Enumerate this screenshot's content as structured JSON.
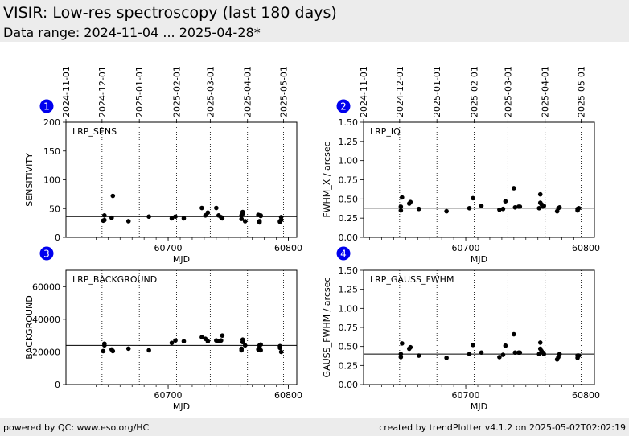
{
  "header": {
    "title": "VISIR: Low-res spectroscopy (last 180 days)",
    "subtitle": "Data range: 2024-11-04 ... 2025-04-28*"
  },
  "footer": {
    "left": "powered by QC: www.eso.org/HC",
    "right": "created by trendPlotter v4.1.2 on 2025-05-02T02:02:19"
  },
  "colors": {
    "badge": "#0000ee",
    "points": "#000000",
    "header_bg": "#ececec"
  },
  "chart_data": [
    {
      "type": "scatter",
      "badge": "1",
      "label": "LRP_SENS",
      "xlabel": "MJD",
      "ylabel": "SENSITIVITY",
      "xlim": [
        60615,
        60807
      ],
      "ylim": [
        0,
        200
      ],
      "yticks": [
        0,
        50,
        100,
        150,
        200
      ],
      "ytick_labels": [
        "0",
        "50",
        "100",
        "150",
        "200"
      ],
      "xticks": [
        60700,
        60800
      ],
      "xtick_labels": [
        "60700",
        "60800"
      ],
      "reference": 36,
      "date_ticks": [
        {
          "mjd": 60615,
          "label": "2024-11-01"
        },
        {
          "mjd": 60645,
          "label": "2024-12-01"
        },
        {
          "mjd": 60676,
          "label": "2025-01-01"
        },
        {
          "mjd": 60707,
          "label": "2025-02-01"
        },
        {
          "mjd": 60735,
          "label": "2025-03-01"
        },
        {
          "mjd": 60766,
          "label": "2025-04-01"
        },
        {
          "mjd": 60796,
          "label": "2025-05-01"
        }
      ],
      "x": [
        60646,
        60647,
        60647,
        60653,
        60654,
        60667,
        60684,
        60703,
        60706,
        60713,
        60728,
        60731,
        60733,
        60740,
        60742,
        60744,
        60745,
        60761,
        60761,
        60762,
        60762,
        60764,
        60775,
        60776,
        60776,
        60777,
        60777,
        60793,
        60793,
        60794,
        60794
      ],
      "y": [
        29,
        30,
        38,
        34,
        72,
        28,
        36,
        33,
        36,
        33,
        51,
        38,
        43,
        51,
        38,
        35,
        33,
        32,
        38,
        41,
        44,
        28,
        39,
        28,
        26,
        38,
        37,
        27,
        28,
        30,
        35
      ]
    },
    {
      "type": "scatter",
      "badge": "2",
      "label": "LRP_IQ",
      "xlabel": "MJD",
      "ylabel": "FWHM_X / arcsec",
      "xlim": [
        60615,
        60807
      ],
      "ylim": [
        0,
        1.5
      ],
      "yticks": [
        0,
        0.25,
        0.5,
        0.75,
        1.0,
        1.25,
        1.5
      ],
      "ytick_labels": [
        "0.00",
        "0.25",
        "0.50",
        "0.75",
        "1.00",
        "1.25",
        "1.50"
      ],
      "xticks": [
        60700,
        60800
      ],
      "xtick_labels": [
        "60700",
        "60800"
      ],
      "reference": 0.38,
      "date_ticks": [
        {
          "mjd": 60615,
          "label": "2024-11-01"
        },
        {
          "mjd": 60645,
          "label": "2024-12-01"
        },
        {
          "mjd": 60676,
          "label": "2025-01-01"
        },
        {
          "mjd": 60707,
          "label": "2025-02-01"
        },
        {
          "mjd": 60735,
          "label": "2025-03-01"
        },
        {
          "mjd": 60766,
          "label": "2025-04-01"
        },
        {
          "mjd": 60796,
          "label": "2025-05-01"
        }
      ],
      "x": [
        60646,
        60646,
        60647,
        60653,
        60654,
        60661,
        60684,
        60703,
        60706,
        60713,
        60728,
        60731,
        60733,
        60740,
        60741,
        60744,
        60745,
        60761,
        60762,
        60762,
        60763,
        60764,
        60765,
        60776,
        60777,
        60778,
        60793,
        60793,
        60794
      ],
      "y": [
        0.35,
        0.4,
        0.52,
        0.44,
        0.46,
        0.37,
        0.34,
        0.38,
        0.51,
        0.41,
        0.36,
        0.37,
        0.47,
        0.64,
        0.39,
        0.4,
        0.4,
        0.38,
        0.45,
        0.56,
        0.43,
        0.4,
        0.41,
        0.34,
        0.38,
        0.39,
        0.35,
        0.37,
        0.38
      ]
    },
    {
      "type": "scatter",
      "badge": "3",
      "label": "LRP_BACKGROUND",
      "xlabel": "MJD",
      "ylabel": "BACKGROUND",
      "xlim": [
        60615,
        60807
      ],
      "ylim": [
        0,
        70000
      ],
      "yticks": [
        0,
        20000,
        40000,
        60000
      ],
      "ytick_labels": [
        "0",
        "20000",
        "40000",
        "60000"
      ],
      "xticks": [
        60700,
        60800
      ],
      "xtick_labels": [
        "60700",
        "60800"
      ],
      "reference": 24000,
      "date_ticks": [
        {
          "mjd": 60615,
          "label": "2024-11-01"
        },
        {
          "mjd": 60645,
          "label": "2024-12-01"
        },
        {
          "mjd": 60676,
          "label": "2025-01-01"
        },
        {
          "mjd": 60707,
          "label": "2025-02-01"
        },
        {
          "mjd": 60735,
          "label": "2025-03-01"
        },
        {
          "mjd": 60766,
          "label": "2025-04-01"
        },
        {
          "mjd": 60796,
          "label": "2025-05-01"
        }
      ],
      "x": [
        60646,
        60647,
        60647,
        60653,
        60654,
        60667,
        60684,
        60703,
        60706,
        60713,
        60728,
        60731,
        60733,
        60740,
        60742,
        60744,
        60745,
        60761,
        60761,
        60762,
        60762,
        60764,
        60775,
        60776,
        60776,
        60777,
        60777,
        60793,
        60793,
        60794
      ],
      "y": [
        20500,
        24000,
        25000,
        21500,
        20500,
        22000,
        21000,
        25500,
        27000,
        26500,
        29000,
        28000,
        26500,
        27000,
        26500,
        27000,
        30000,
        21000,
        22000,
        26000,
        27500,
        24000,
        21500,
        22500,
        24000,
        24500,
        21000,
        22500,
        23500,
        20000
      ]
    },
    {
      "type": "scatter",
      "badge": "4",
      "label": "LRP_GAUSS_FWHM",
      "xlabel": "MJD",
      "ylabel": "GAUSS_FWHM / arcsec",
      "xlim": [
        60615,
        60807
      ],
      "ylim": [
        0,
        1.5
      ],
      "yticks": [
        0,
        0.25,
        0.5,
        0.75,
        1.0,
        1.25,
        1.5
      ],
      "ytick_labels": [
        "0.00",
        "0.25",
        "0.50",
        "0.75",
        "1.00",
        "1.25",
        "1.50"
      ],
      "xticks": [
        60700,
        60800
      ],
      "xtick_labels": [
        "60700",
        "60800"
      ],
      "reference": 0.4,
      "date_ticks": [
        {
          "mjd": 60615,
          "label": "2024-11-01"
        },
        {
          "mjd": 60645,
          "label": "2024-12-01"
        },
        {
          "mjd": 60676,
          "label": "2025-01-01"
        },
        {
          "mjd": 60707,
          "label": "2025-02-01"
        },
        {
          "mjd": 60735,
          "label": "2025-03-01"
        },
        {
          "mjd": 60766,
          "label": "2025-04-01"
        },
        {
          "mjd": 60796,
          "label": "2025-05-01"
        }
      ],
      "x": [
        60646,
        60646,
        60647,
        60653,
        60654,
        60661,
        60684,
        60703,
        60706,
        60713,
        60728,
        60731,
        60733,
        60740,
        60741,
        60744,
        60745,
        60761,
        60762,
        60762,
        60763,
        60764,
        60765,
        60776,
        60777,
        60778,
        60793,
        60793,
        60794
      ],
      "y": [
        0.36,
        0.4,
        0.54,
        0.47,
        0.49,
        0.38,
        0.35,
        0.4,
        0.52,
        0.42,
        0.36,
        0.39,
        0.51,
        0.66,
        0.42,
        0.42,
        0.42,
        0.4,
        0.47,
        0.55,
        0.44,
        0.42,
        0.4,
        0.33,
        0.36,
        0.4,
        0.35,
        0.38,
        0.38
      ]
    }
  ]
}
